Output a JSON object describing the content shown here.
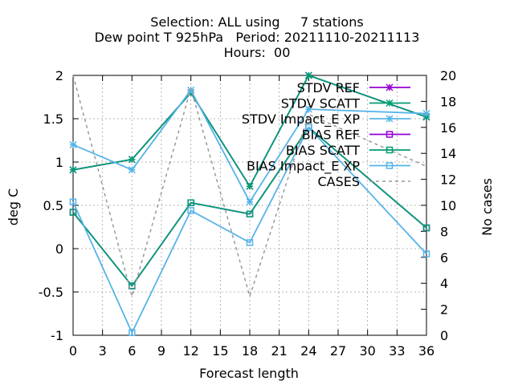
{
  "chart_data": {
    "type": "line",
    "title_lines": [
      "Selection: ALL using     7 stations",
      "Dew point T 925hPa   Period: 20211110-20211113",
      "Hours:  00"
    ],
    "xlabel": "Forecast length",
    "ylabel": "deg C",
    "y2label": "No cases",
    "xlim": [
      0,
      36
    ],
    "ylim": [
      -1,
      2
    ],
    "y2lim": [
      0,
      20
    ],
    "x_ticks": [
      "0",
      "3",
      "6",
      "9",
      "12",
      "15",
      "18",
      "21",
      "24",
      "27",
      "30",
      "33",
      "36"
    ],
    "y_ticks": [
      "-1",
      "-0.5",
      "0",
      "0.5",
      "1",
      "1.5",
      "2"
    ],
    "y2_ticks": [
      "0",
      "2",
      "4",
      "6",
      "8",
      "10",
      "12",
      "14",
      "16",
      "18",
      "20"
    ],
    "legend_position": "top-right",
    "series": [
      {
        "name": "STDV REF",
        "color": "#9400d3",
        "marker": "star",
        "dash": false,
        "axis": "y",
        "x": [
          0,
          6,
          12,
          18,
          24,
          36
        ],
        "values": [
          0.91,
          1.03,
          1.8,
          0.72,
          2.0,
          1.52
        ]
      },
      {
        "name": "STDV SCATT",
        "color": "#009e73",
        "marker": "star",
        "dash": false,
        "axis": "y",
        "x": [
          0,
          6,
          12,
          18,
          24,
          36
        ],
        "values": [
          0.91,
          1.03,
          1.8,
          0.72,
          2.0,
          1.52
        ]
      },
      {
        "name": "STDV Impact_E XP",
        "color": "#56b4e9",
        "marker": "star",
        "dash": false,
        "axis": "y",
        "x": [
          0,
          6,
          12,
          18,
          24,
          36
        ],
        "values": [
          1.2,
          0.91,
          1.83,
          0.54,
          1.61,
          1.56
        ]
      },
      {
        "name": "BIAS REF",
        "color": "#9400d3",
        "marker": "square",
        "dash": false,
        "axis": "y",
        "x": [
          0,
          6,
          12,
          18,
          24,
          36
        ],
        "values": [
          0.42,
          -0.43,
          0.53,
          0.4,
          1.4,
          0.24
        ]
      },
      {
        "name": "BIAS SCATT",
        "color": "#009e73",
        "marker": "square",
        "dash": false,
        "axis": "y",
        "x": [
          0,
          6,
          12,
          18,
          24,
          36
        ],
        "values": [
          0.42,
          -0.43,
          0.53,
          0.4,
          1.4,
          0.24
        ]
      },
      {
        "name": "BIAS Impact_E XP",
        "color": "#56b4e9",
        "marker": "square",
        "dash": false,
        "axis": "y",
        "x": [
          0,
          6,
          12,
          18,
          24,
          36
        ],
        "values": [
          0.54,
          -0.97,
          0.44,
          0.07,
          1.4,
          -0.06
        ]
      },
      {
        "name": "CASES",
        "color": "#999999",
        "marker": "none",
        "dash": true,
        "axis": "y2",
        "x": [
          0,
          6,
          12,
          18,
          24,
          36
        ],
        "values": [
          20,
          3,
          19,
          3,
          17,
          13
        ]
      }
    ]
  }
}
